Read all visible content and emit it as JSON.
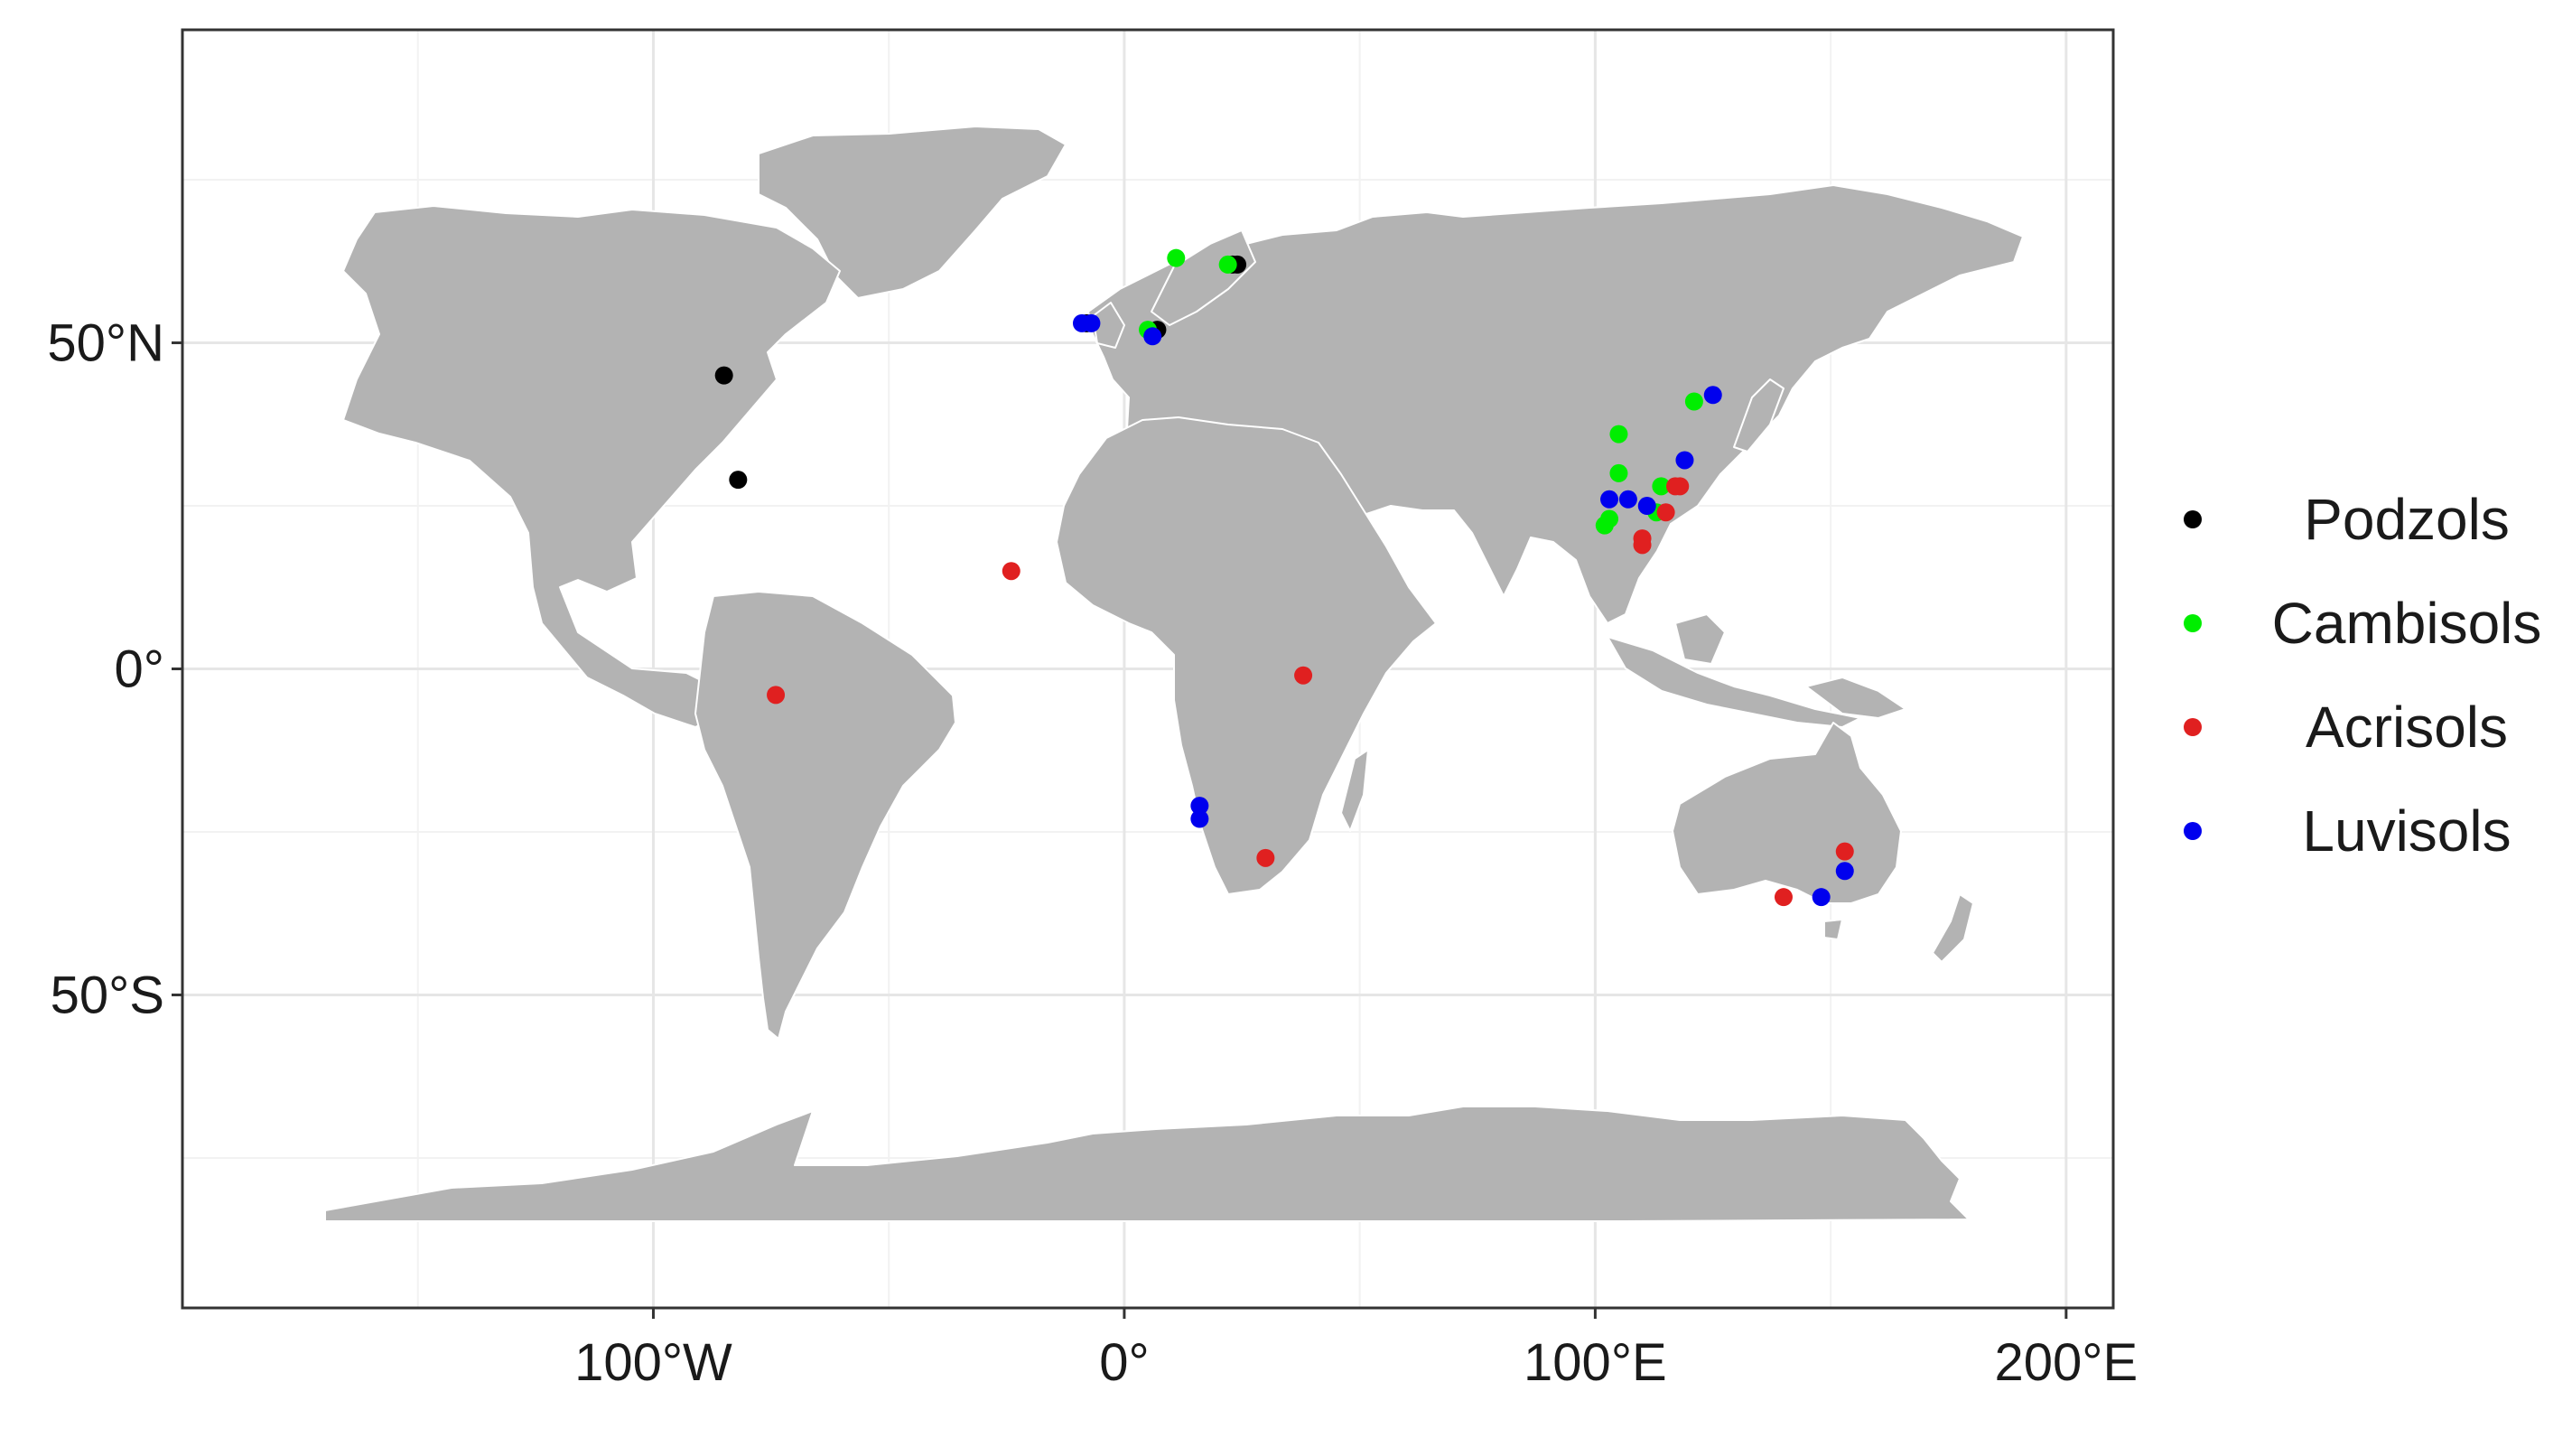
{
  "chart_data": {
    "type": "scatter",
    "title": "",
    "xlabel": "",
    "ylabel": "",
    "xlim": [
      -200,
      210
    ],
    "ylim": [
      -98,
      98
    ],
    "grid": true,
    "legend_position": "right",
    "x_ticks": [
      {
        "value": -100,
        "label": "100°W"
      },
      {
        "value": 0,
        "label": "0°"
      },
      {
        "value": 100,
        "label": "100°E"
      },
      {
        "value": 200,
        "label": "200°E"
      }
    ],
    "y_ticks": [
      {
        "value": 50,
        "label": "50°N"
      },
      {
        "value": 0,
        "label": "0°"
      },
      {
        "value": -50,
        "label": "50°S"
      }
    ],
    "series": [
      {
        "name": "Podzols",
        "color": "#000000",
        "points": [
          [
            -85,
            45
          ],
          [
            -82,
            29
          ],
          [
            -8,
            53
          ],
          [
            7,
            52
          ],
          [
            23,
            62
          ],
          [
            24,
            62
          ]
        ]
      },
      {
        "name": "Cambisols",
        "color": "#00ee00",
        "points": [
          [
            11,
            63
          ],
          [
            22,
            62
          ],
          [
            5,
            52
          ],
          [
            105,
            36
          ],
          [
            105,
            30
          ],
          [
            114,
            28
          ],
          [
            113,
            24
          ],
          [
            102,
            22
          ],
          [
            103,
            23
          ],
          [
            121,
            41
          ]
        ]
      },
      {
        "name": "Acrisols",
        "color": "#e02020",
        "points": [
          [
            -24,
            15
          ],
          [
            -74,
            -4
          ],
          [
            38,
            -1
          ],
          [
            30,
            -29
          ],
          [
            118,
            28
          ],
          [
            117,
            28
          ],
          [
            115,
            24
          ],
          [
            110,
            19
          ],
          [
            110,
            20
          ],
          [
            140,
            -35
          ],
          [
            153,
            -28
          ]
        ]
      },
      {
        "name": "Luvisols",
        "color": "#0000ee",
        "points": [
          [
            -9,
            53
          ],
          [
            -7,
            53
          ],
          [
            6,
            51
          ],
          [
            16,
            -21
          ],
          [
            16,
            -23
          ],
          [
            103,
            26
          ],
          [
            107,
            26
          ],
          [
            111,
            25
          ],
          [
            119,
            32
          ],
          [
            125,
            42
          ],
          [
            148,
            -35
          ],
          [
            153,
            -31
          ]
        ]
      }
    ]
  }
}
